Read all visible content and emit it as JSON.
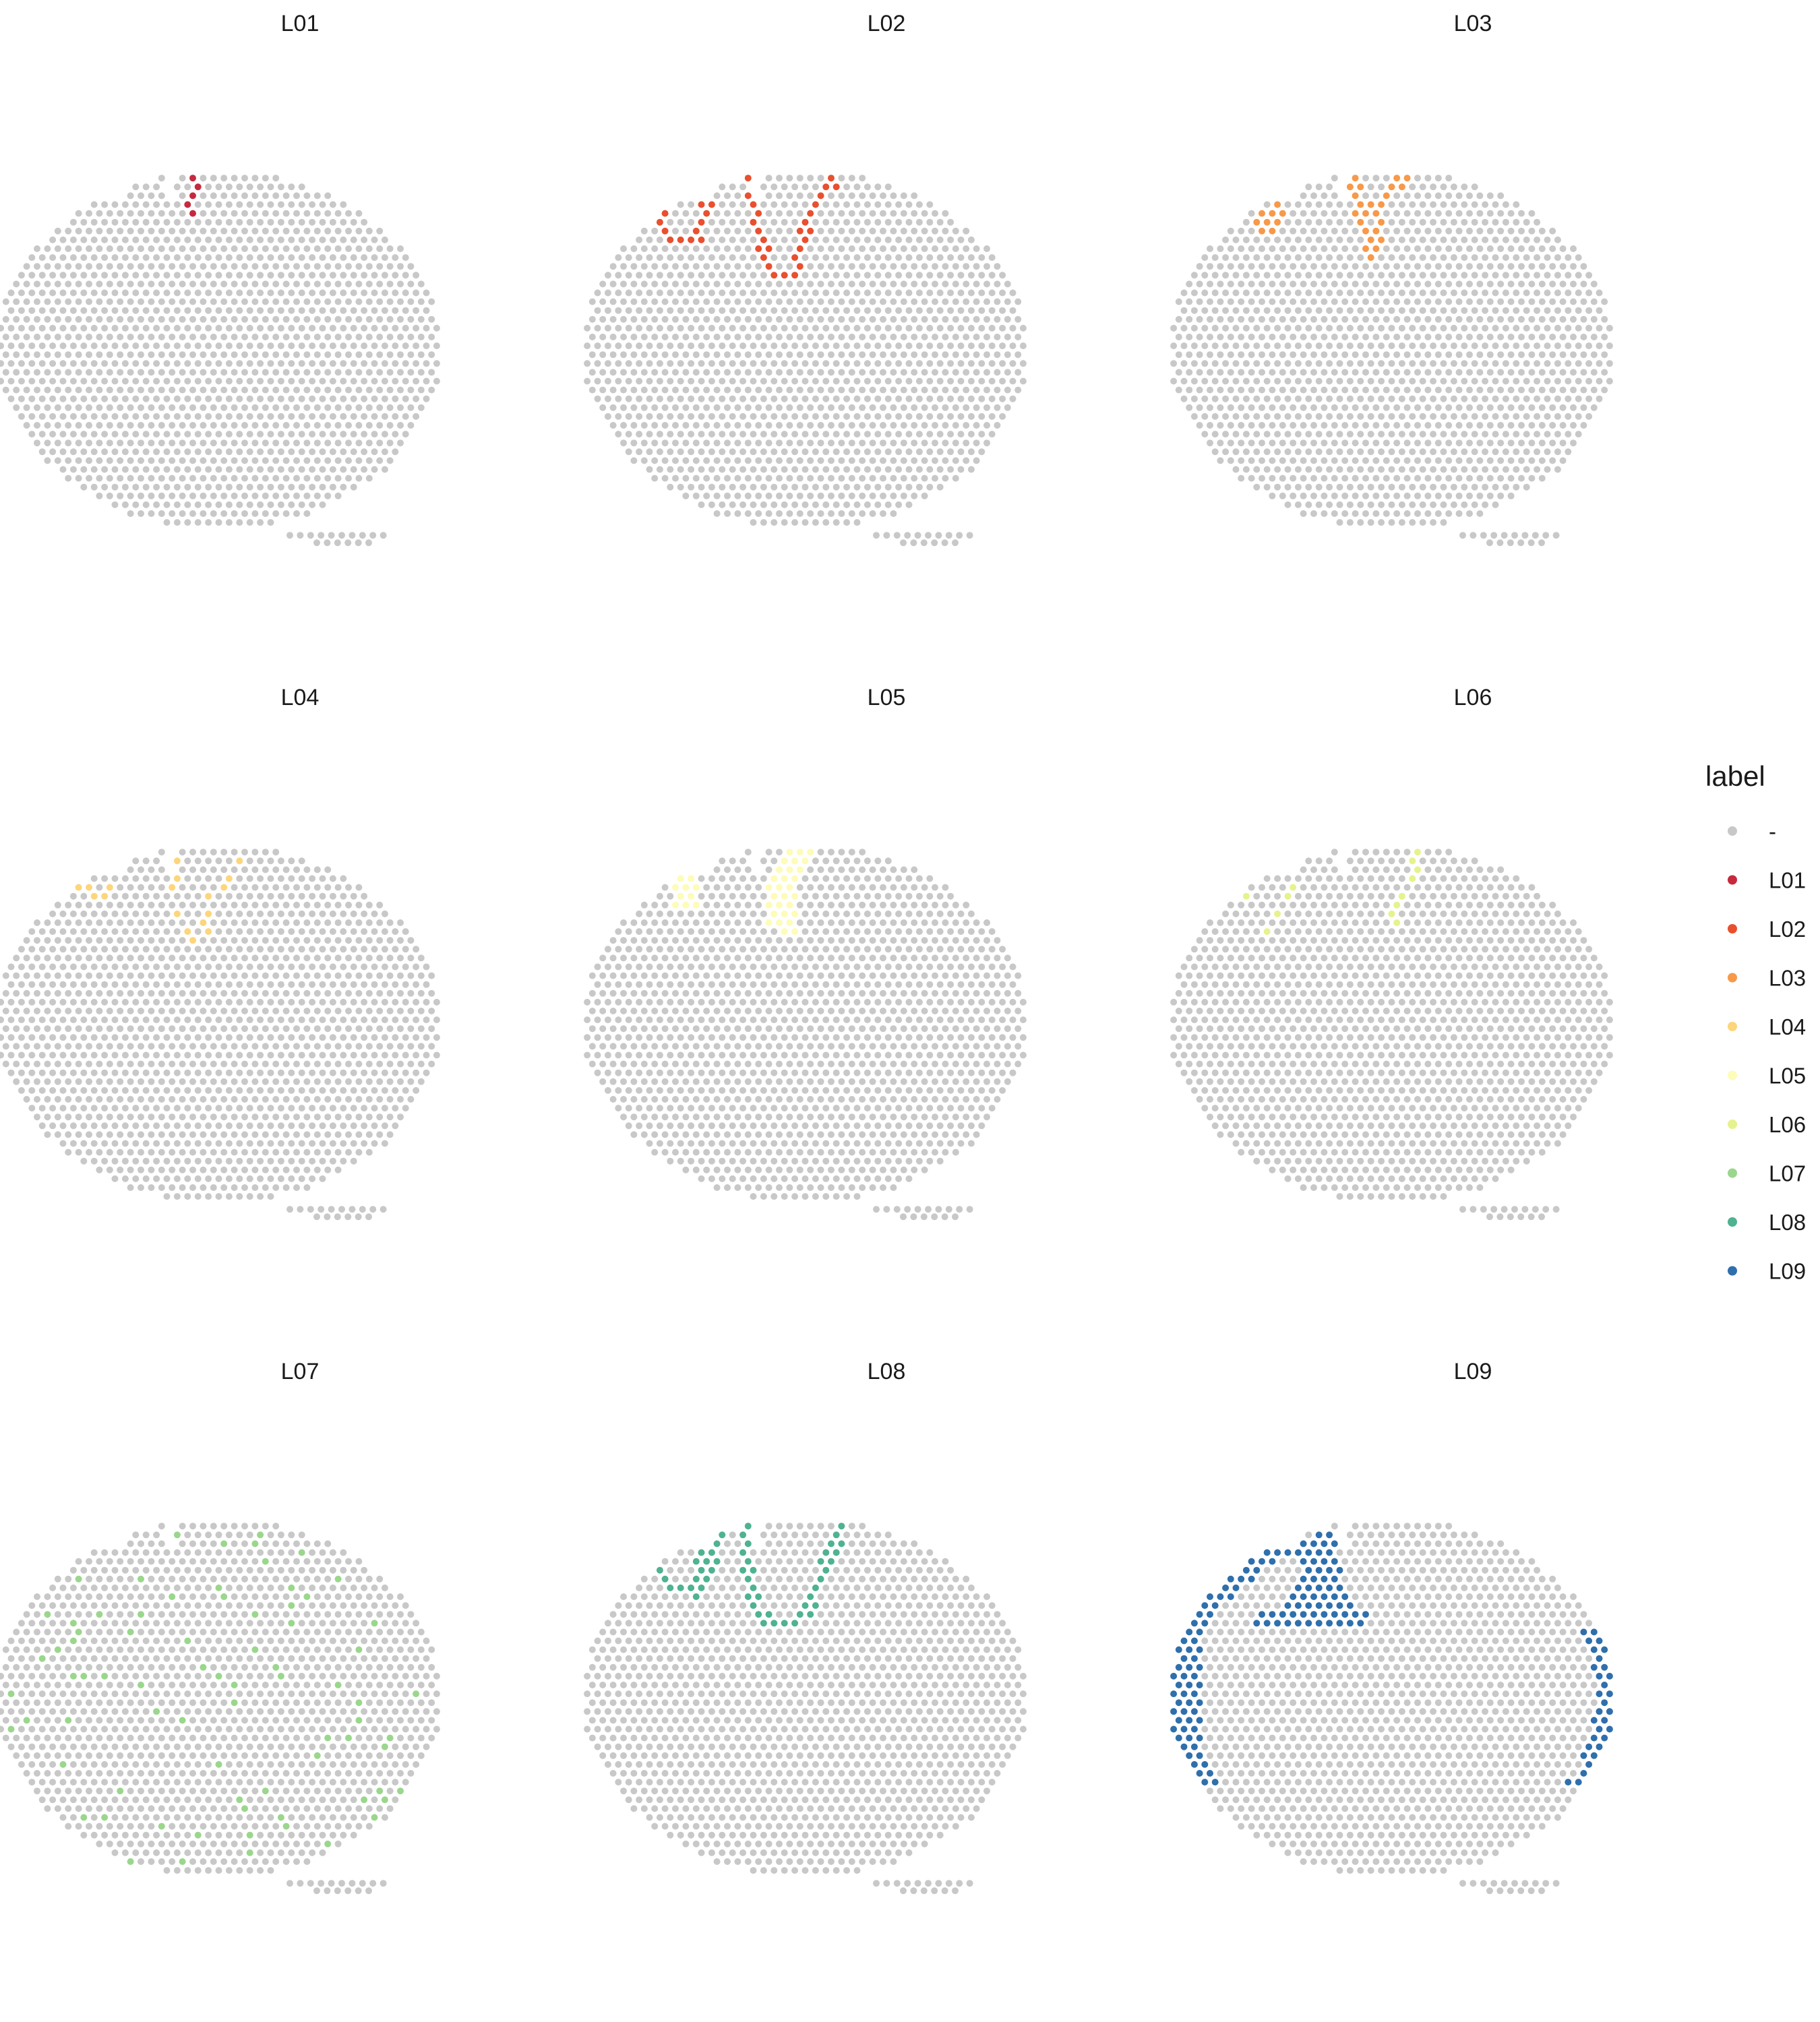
{
  "chart_data": {
    "type": "scatter",
    "description_kind": "faceted spatial spot map, 3x3 panels, one highlighted label per panel",
    "panels": [
      {
        "title": "L01",
        "highlight": "L01"
      },
      {
        "title": "L02",
        "highlight": "L02"
      },
      {
        "title": "L03",
        "highlight": "L03"
      },
      {
        "title": "L04",
        "highlight": "L04"
      },
      {
        "title": "L05",
        "highlight": "L05"
      },
      {
        "title": "L06",
        "highlight": "L06"
      },
      {
        "title": "L07",
        "highlight": "L07"
      },
      {
        "title": "L08",
        "highlight": "L08"
      },
      {
        "title": "L09",
        "highlight": "L09"
      }
    ],
    "legend": {
      "title": "label",
      "placement": "right",
      "entries": [
        {
          "label": "-",
          "color": "#c8c8c8"
        },
        {
          "label": "L01",
          "color": "#c62a3e"
        },
        {
          "label": "L02",
          "color": "#e8502f"
        },
        {
          "label": "L03",
          "color": "#f7994a"
        },
        {
          "label": "L04",
          "color": "#fdd57c"
        },
        {
          "label": "L05",
          "color": "#fdfcb8"
        },
        {
          "label": "L06",
          "color": "#e6f28c"
        },
        {
          "label": "L07",
          "color": "#9bd68d"
        },
        {
          "label": "L08",
          "color": "#4fb291"
        },
        {
          "label": "L09",
          "color": "#2f6fac"
        }
      ]
    },
    "axes_visible": false,
    "grid": false
  }
}
